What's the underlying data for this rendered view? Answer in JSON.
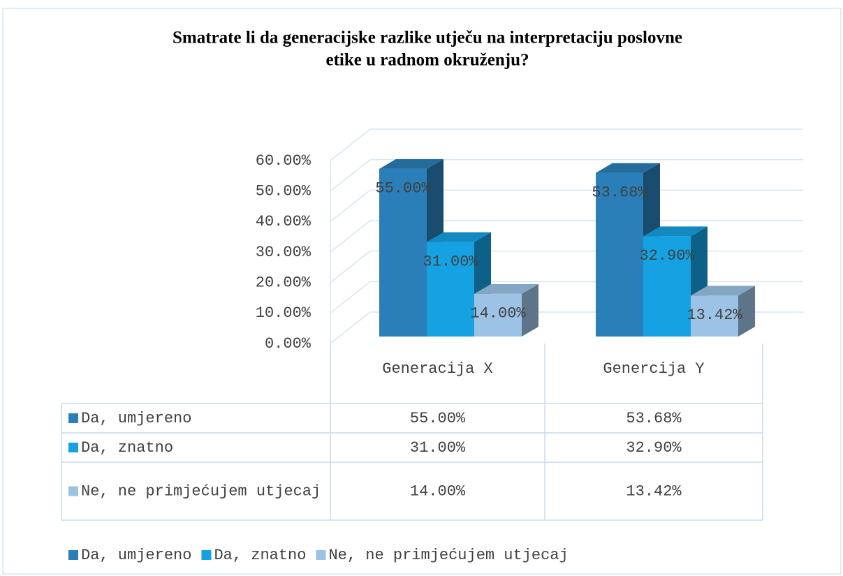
{
  "chart_data": {
    "type": "bar3d",
    "title": "Smatrate li da generacijske razlike utječu na interpretaciju poslovne etike u radnom okruženju?",
    "categories": [
      "Generacija X",
      "Genercija Y"
    ],
    "series": [
      {
        "name": "Da, umjereno",
        "color": "#2a7fb8",
        "values": [
          55,
          53.68
        ],
        "value_labels": [
          "55.00%",
          "53.68%"
        ]
      },
      {
        "name": "Da, znatno",
        "color": "#16a1e2",
        "values": [
          31,
          32.9
        ],
        "value_labels": [
          "31.00%",
          "32.90%"
        ]
      },
      {
        "name": "Ne, ne primjećujem utjecaj",
        "color": "#9cc3e5",
        "values": [
          14,
          13.42
        ],
        "value_labels": [
          "14.00%",
          "13.42%"
        ]
      }
    ],
    "ylim": [
      0,
      60
    ],
    "yticks": [
      {
        "value": 0,
        "label": "0.00%"
      },
      {
        "value": 10,
        "label": "10.00%"
      },
      {
        "value": 20,
        "label": "20.00%"
      },
      {
        "value": 30,
        "label": "30.00%"
      },
      {
        "value": 40,
        "label": "40.00%"
      },
      {
        "value": 50,
        "label": "50.00%"
      },
      {
        "value": 60,
        "label": "60.00%"
      }
    ],
    "grid": true,
    "legend": "bottom",
    "data_table": true
  }
}
